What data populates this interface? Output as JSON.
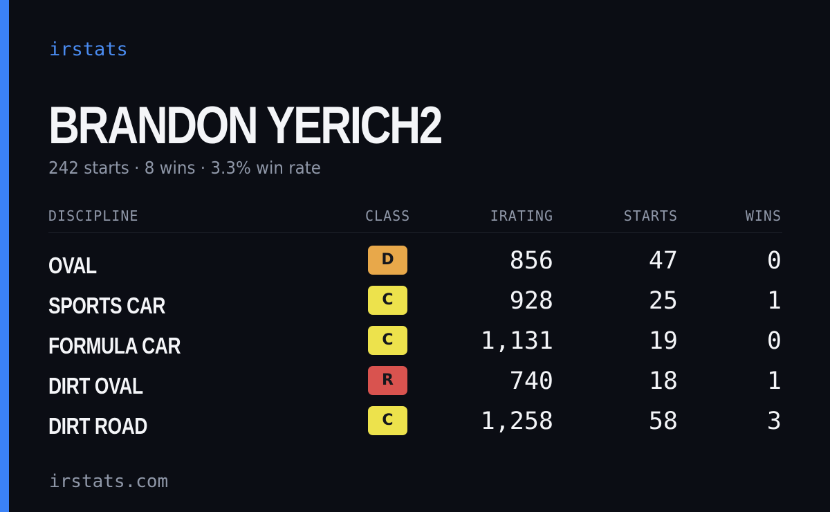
{
  "brand": "irstats",
  "colors": {
    "accent": "#3b82f6",
    "background": "#0b0d14",
    "muted": "#8f97a8",
    "text": "#f4f5f8"
  },
  "player": {
    "name": "BRANDON YERICH2",
    "starts": "242 starts",
    "wins": "8 wins",
    "win_rate": "3.3% win rate",
    "separator": "·"
  },
  "table": {
    "headers": {
      "discipline": "DISCIPLINE",
      "class": "CLASS",
      "irating": "IRATING",
      "starts": "STARTS",
      "wins": "WINS"
    },
    "rows": [
      {
        "discipline": "OVAL",
        "class": "D",
        "class_color": "#e8a84a",
        "irating": "856",
        "starts": "47",
        "wins": "0"
      },
      {
        "discipline": "SPORTS CAR",
        "class": "C",
        "class_color": "#ede24c",
        "irating": "928",
        "starts": "25",
        "wins": "1"
      },
      {
        "discipline": "FORMULA CAR",
        "class": "C",
        "class_color": "#ede24c",
        "irating": "1,131",
        "starts": "19",
        "wins": "0"
      },
      {
        "discipline": "DIRT OVAL",
        "class": "R",
        "class_color": "#d9534f",
        "irating": "740",
        "starts": "18",
        "wins": "1"
      },
      {
        "discipline": "DIRT ROAD",
        "class": "C",
        "class_color": "#ede24c",
        "irating": "1,258",
        "starts": "58",
        "wins": "3"
      }
    ]
  },
  "footer": "irstats.com"
}
